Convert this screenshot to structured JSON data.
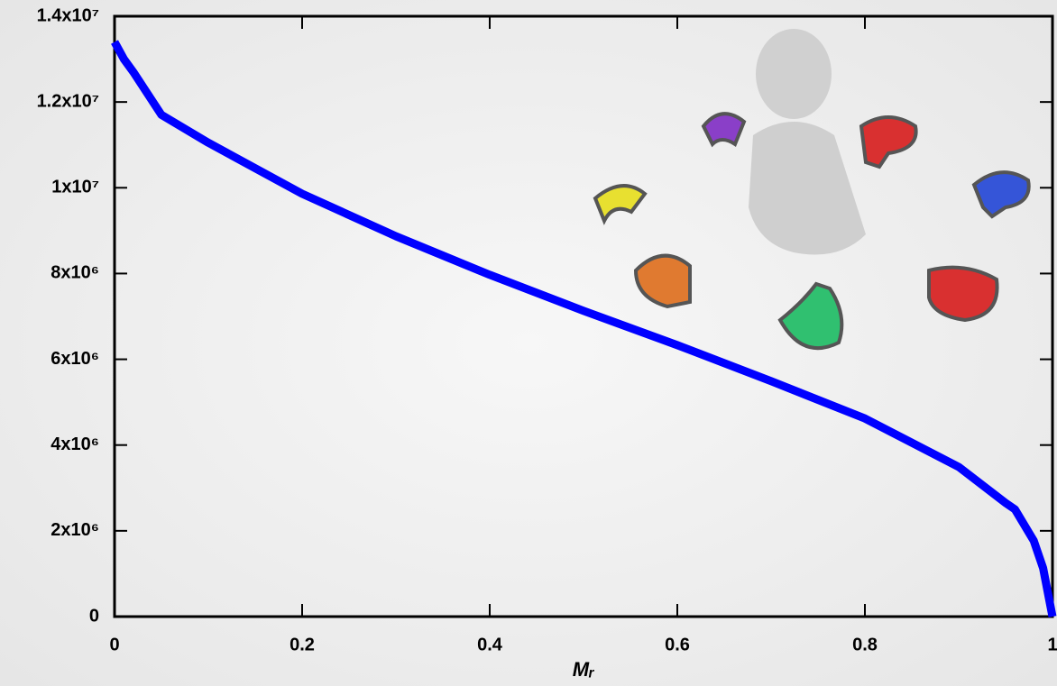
{
  "chart_data": {
    "type": "line",
    "x_label": "Mᵣ",
    "x": [
      0,
      0.01,
      0.02,
      0.05,
      0.1,
      0.2,
      0.3,
      0.4,
      0.5,
      0.6,
      0.7,
      0.8,
      0.9,
      0.95,
      0.96,
      0.98,
      0.99,
      1
    ],
    "series": [
      {
        "color": "#0000ff",
        "values": [
          13400000,
          13000000,
          12700000,
          11700000,
          11050000,
          9860000,
          8870000,
          7970000,
          7130000,
          6330000,
          5490000,
          4620000,
          3490000,
          2650000,
          2500000,
          1770000,
          1130000,
          0
        ]
      }
    ],
    "xlim": [
      0,
      1
    ],
    "ylim": [
      0,
      14000000
    ],
    "xticks": [
      0,
      0.2,
      0.4,
      0.6,
      0.8,
      1
    ],
    "yticks": [
      0,
      {
        "value": 2000000,
        "label": "2x10⁶"
      },
      {
        "value": 4000000,
        "label": "4x10⁶"
      },
      {
        "value": 6000000,
        "label": "6x10⁶"
      },
      {
        "value": 8000000,
        "label": "8x10⁶"
      },
      {
        "value": 10000000,
        "label": "1x10⁷"
      },
      {
        "value": 12000000,
        "label": "1.2x10⁷"
      },
      {
        "value": 14000000,
        "label": "1.4x10⁷"
      }
    ]
  }
}
